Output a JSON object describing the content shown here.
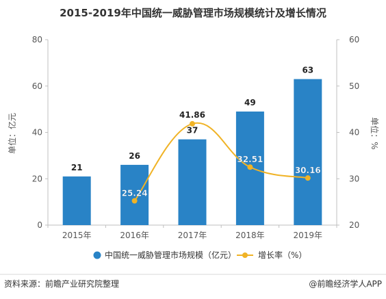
{
  "chart_data": {
    "type": "bar",
    "title": "2015-2019年中国统一威胁管理市场规模统计及增长情况",
    "categories": [
      "2015年",
      "2016年",
      "2017年",
      "2018年",
      "2019年"
    ],
    "ylabel_left": "单位：亿元",
    "ylabel_right": "单位：%",
    "ylim_left": [
      0,
      80
    ],
    "yticks_left": [
      "0",
      "20",
      "40",
      "60",
      "80"
    ],
    "ylim_right": [
      20,
      60
    ],
    "yticks_right": [
      "20",
      "30",
      "40",
      "50",
      "60"
    ],
    "series": [
      {
        "name": "中国统一威胁管理市场规模（亿元）",
        "kind": "bar",
        "axis": "left",
        "color": "#2983c6",
        "values": [
          21,
          26,
          37,
          49,
          63
        ],
        "labels": [
          "21",
          "26",
          "37",
          "49",
          "63"
        ]
      },
      {
        "name": "增长率（%）",
        "kind": "line",
        "axis": "right",
        "color": "#f0b326",
        "values": [
          null,
          25.24,
          41.86,
          32.51,
          30.16
        ],
        "labels": [
          "",
          "25.24",
          "41.86",
          "32.51",
          "30.16"
        ]
      }
    ],
    "legend_position": "bottom",
    "grid": false
  },
  "footer": {
    "source": "资料来源：前瞻产业研究院整理",
    "brand": "@前瞻经济学人APP"
  }
}
